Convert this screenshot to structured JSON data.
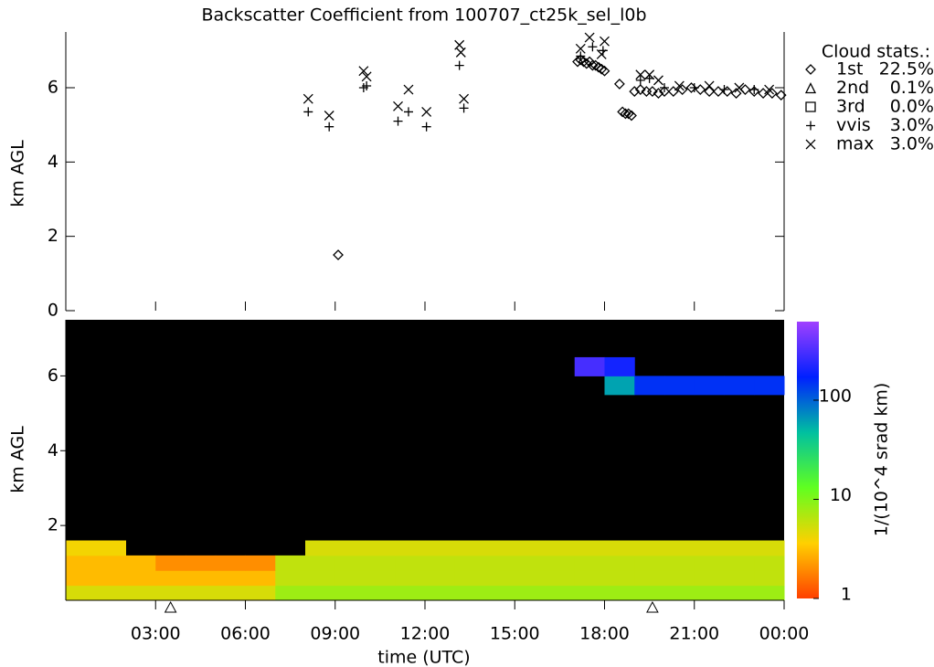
{
  "chart_data": [
    {
      "type": "scatter",
      "title": "Backscatter Coefficient from 100707_ct25k_sel_l0b",
      "ylabel": "km AGL",
      "legend_title": "Cloud stats.:",
      "xlim": [
        0,
        24
      ],
      "ylim": [
        0,
        7.5
      ],
      "yticks": [
        0,
        2,
        4,
        6
      ],
      "series": [
        {
          "name": "1st",
          "marker": "diamond",
          "color": "#000000",
          "stat": {
            "value": 22.5,
            "label": "22.5%"
          },
          "x": [
            9.1,
            17.1,
            17.2,
            17.3,
            17.4,
            17.5,
            17.6,
            17.7,
            17.8,
            17.9,
            18.0,
            18.5,
            18.6,
            18.7,
            18.8,
            18.9,
            19.0,
            19.2,
            19.4,
            19.6,
            19.8,
            20.0,
            20.3,
            20.6,
            20.9,
            21.2,
            21.5,
            21.8,
            22.1,
            22.4,
            22.7,
            23.0,
            23.3,
            23.6,
            23.9
          ],
          "y": [
            1.5,
            6.7,
            6.75,
            6.7,
            6.65,
            6.7,
            6.6,
            6.6,
            6.55,
            6.5,
            6.45,
            6.1,
            5.35,
            5.3,
            5.3,
            5.25,
            5.9,
            5.95,
            5.9,
            5.9,
            5.85,
            5.9,
            5.9,
            5.95,
            6.0,
            5.95,
            5.9,
            5.9,
            5.9,
            5.85,
            5.95,
            5.9,
            5.85,
            5.85,
            5.8
          ]
        },
        {
          "name": "2nd",
          "marker": "triangle",
          "color": "#000000",
          "stat": {
            "value": 0.1,
            "label": "0.1%"
          },
          "x": [],
          "y": []
        },
        {
          "name": "3rd",
          "marker": "square",
          "color": "#000000",
          "stat": {
            "value": 0.0,
            "label": "0.0%"
          },
          "x": [],
          "y": []
        },
        {
          "name": "vvis",
          "marker": "plus",
          "color": "#000000",
          "stat": {
            "value": 3.0,
            "label": "3.0%"
          },
          "x": [
            8.1,
            8.8,
            9.95,
            10.05,
            11.1,
            11.45,
            12.05,
            13.15,
            13.3,
            17.2,
            17.6,
            17.95,
            19.2,
            19.5,
            20.0,
            21.0,
            22.0,
            23.0
          ],
          "y": [
            5.35,
            4.95,
            6.0,
            6.05,
            5.1,
            5.35,
            4.95,
            6.6,
            5.45,
            6.85,
            7.1,
            7.0,
            6.2,
            6.25,
            6.0,
            6.0,
            5.95,
            5.95
          ]
        },
        {
          "name": "max",
          "marker": "cross",
          "color": "#000000",
          "stat": {
            "value": 3.0,
            "label": "3.0%"
          },
          "x": [
            8.1,
            8.8,
            9.95,
            10.05,
            11.1,
            11.45,
            12.05,
            13.15,
            13.2,
            13.3,
            17.2,
            17.5,
            17.9,
            18.0,
            19.2,
            19.5,
            19.8,
            20.5,
            21.5,
            22.5,
            23.5
          ],
          "y": [
            5.7,
            5.25,
            6.45,
            6.3,
            5.5,
            5.95,
            5.35,
            7.15,
            6.95,
            5.7,
            7.05,
            7.35,
            6.9,
            7.25,
            6.35,
            6.35,
            6.2,
            6.05,
            6.05,
            6.0,
            5.95
          ]
        }
      ]
    },
    {
      "type": "heatmap",
      "ylabel": "km AGL",
      "xlabel": "time (UTC)",
      "colorbar_label": "1/(10^4 srad km)",
      "xlim": [
        0,
        24
      ],
      "ylim": [
        0,
        7.5
      ],
      "yticks": [
        2,
        4,
        6
      ],
      "xticks": [
        {
          "value": 3,
          "label": "03:00"
        },
        {
          "value": 6,
          "label": "06:00"
        },
        {
          "value": 9,
          "label": "09:00"
        },
        {
          "value": 12,
          "label": "12:00"
        },
        {
          "value": 15,
          "label": "15:00"
        },
        {
          "value": 18,
          "label": "18:00"
        },
        {
          "value": 21,
          "label": "21:00"
        },
        {
          "value": 24,
          "label": "00:00"
        }
      ],
      "clim": [
        1,
        620
      ],
      "log_color": true,
      "cticks": [
        1,
        10,
        100
      ],
      "colors": [
        "#ff4000",
        "#ffd000",
        "#60ff20",
        "#00c0a0",
        "#0020ff",
        "#a040ff"
      ],
      "background": "#000000",
      "markers_x": [
        3.5,
        19.6
      ],
      "x_edges": [
        0,
        1,
        2,
        3,
        4,
        5,
        6,
        7,
        8,
        9,
        10,
        11,
        12,
        13,
        14,
        15,
        16,
        17,
        18,
        19,
        20,
        21,
        22,
        23,
        24
      ],
      "y_edges": [
        0,
        0.4,
        0.8,
        1.2,
        1.6,
        5.5,
        6.0,
        6.5,
        7.5
      ],
      "z": [
        [
          5,
          5,
          5,
          5,
          5,
          5,
          5,
          8,
          8,
          8,
          8,
          8,
          8,
          8,
          8,
          8,
          8,
          8,
          8,
          8,
          8,
          8,
          8,
          8
        ],
        [
          3,
          3,
          3,
          3,
          3,
          3,
          3,
          6,
          6,
          6,
          6,
          6,
          6,
          6,
          6,
          6,
          6,
          6,
          6,
          6,
          6,
          6,
          6,
          6
        ],
        [
          3,
          3,
          3,
          2,
          2,
          2,
          2,
          6,
          6,
          6,
          6,
          6,
          6,
          6,
          6,
          6,
          6,
          6,
          6,
          6,
          6,
          6,
          6,
          6
        ],
        [
          4,
          4,
          null,
          null,
          null,
          null,
          null,
          null,
          5,
          5,
          5,
          5,
          5,
          5,
          5,
          5,
          5,
          5,
          5,
          5,
          5,
          5,
          5,
          5
        ],
        [
          null,
          null,
          null,
          null,
          null,
          null,
          null,
          null,
          null,
          null,
          null,
          null,
          null,
          null,
          null,
          null,
          null,
          null,
          null,
          null,
          null,
          null,
          null,
          null
        ],
        [
          null,
          null,
          null,
          null,
          null,
          null,
          null,
          null,
          null,
          null,
          null,
          null,
          null,
          null,
          null,
          null,
          null,
          null,
          60,
          150,
          150,
          150,
          150,
          150
        ],
        [
          null,
          null,
          null,
          null,
          null,
          null,
          null,
          null,
          null,
          null,
          null,
          null,
          null,
          null,
          null,
          null,
          null,
          300,
          200,
          null,
          null,
          null,
          null,
          null
        ],
        [
          null,
          null,
          null,
          null,
          null,
          null,
          null,
          null,
          null,
          null,
          null,
          null,
          null,
          null,
          null,
          null,
          null,
          null,
          null,
          null,
          null,
          null,
          null,
          null
        ]
      ]
    }
  ]
}
